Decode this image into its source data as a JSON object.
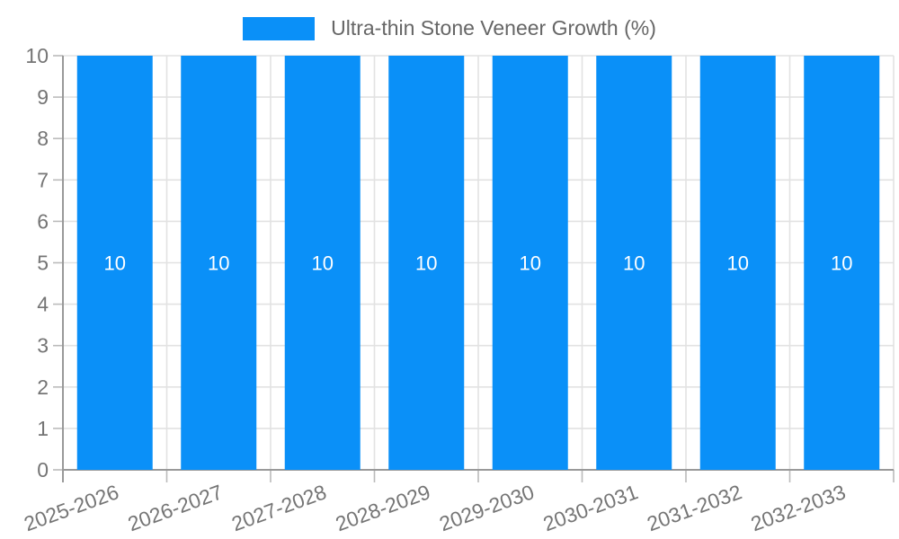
{
  "legend": {
    "label": "Ultra-thin Stone Veneer Growth (%)",
    "position": "top"
  },
  "chart_data": {
    "type": "bar",
    "title": "",
    "xlabel": "",
    "ylabel": "",
    "categories": [
      "2025-2026",
      "2026-2027",
      "2027-2028",
      "2028-2029",
      "2029-2030",
      "2030-2031",
      "2031-2032",
      "2032-2033"
    ],
    "series": [
      {
        "name": "Ultra-thin Stone Veneer Growth (%)",
        "values": [
          10,
          10,
          10,
          10,
          10,
          10,
          10,
          10
        ]
      }
    ],
    "bar_value_labels": [
      "10",
      "10",
      "10",
      "10",
      "10",
      "10",
      "10",
      "10"
    ],
    "ylim": [
      0,
      10
    ],
    "ytick_step": 1,
    "grid": true,
    "legend_position": "top",
    "x_tick_label_rotation_deg": -20,
    "colors": {
      "bar": "#0a90f8",
      "grid": "#e2e2e2",
      "tick": "#bbbbbb",
      "axis": "#999999",
      "axis_label": "#757575",
      "legend_text": "#666666",
      "value_label": "#ffffff",
      "background": "#ffffff"
    }
  }
}
